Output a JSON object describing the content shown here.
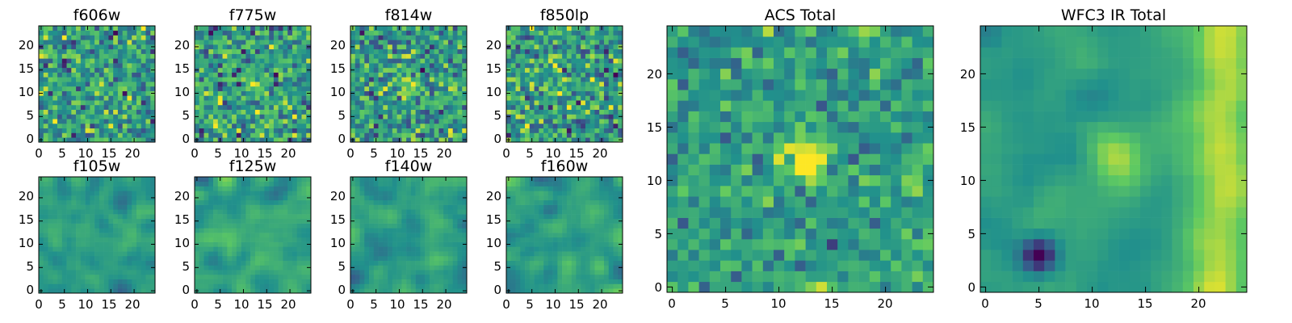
{
  "figure": {
    "colormap": "viridis",
    "colormap_stops": [
      "#440154",
      "#3b528b",
      "#21918c",
      "#5ec962",
      "#fde725"
    ]
  },
  "chart_data": [
    {
      "type": "heatmap",
      "title": "f606w",
      "grid": "25x25",
      "xlim": [
        0,
        24
      ],
      "ylim": [
        0,
        24
      ],
      "xticks": [
        "0",
        "5",
        "10",
        "15",
        "20"
      ],
      "yticks": [
        "0",
        "5",
        "10",
        "15",
        "20"
      ],
      "feature": "faint compact bright source near (12, 12) on a noisy background",
      "seed": 11,
      "noise": 0.5
    },
    {
      "type": "heatmap",
      "title": "f775w",
      "grid": "25x25",
      "xlim": [
        0,
        24
      ],
      "ylim": [
        0,
        24
      ],
      "xticks": [
        "0",
        "5",
        "10",
        "15",
        "20"
      ],
      "yticks": [
        "0",
        "5",
        "10",
        "15",
        "20"
      ],
      "feature": "faint compact bright source near (12, 12) on a noisy background",
      "seed": 23,
      "noise": 0.5
    },
    {
      "type": "heatmap",
      "title": "f814w",
      "grid": "25x25",
      "xlim": [
        0,
        24
      ],
      "ylim": [
        0,
        24
      ],
      "xticks": [
        "0",
        "5",
        "10",
        "15",
        "20"
      ],
      "yticks": [
        "0",
        "5",
        "10",
        "15",
        "20"
      ],
      "feature": "faint compact bright source near (12, 12) on a noisy background",
      "seed": 37,
      "noise": 0.5
    },
    {
      "type": "heatmap",
      "title": "f850lp",
      "grid": "25x25",
      "xlim": [
        0,
        24
      ],
      "ylim": [
        0,
        24
      ],
      "xticks": [
        "0",
        "5",
        "10",
        "15",
        "20"
      ],
      "yticks": [
        "0",
        "5",
        "10",
        "15",
        "20"
      ],
      "feature": "noisy background, source barely visible",
      "seed": 41,
      "noise": 0.55
    },
    {
      "type": "heatmap",
      "title": "f105w",
      "grid": "25x25",
      "xlim": [
        0,
        24
      ],
      "ylim": [
        0,
        24
      ],
      "xticks": [
        "0",
        "5",
        "10",
        "15",
        "20"
      ],
      "yticks": [
        "0",
        "5",
        "10",
        "15",
        "20"
      ],
      "feature": "smoothed noise, diffuse bright regions",
      "seed": 53,
      "noise": 0.45
    },
    {
      "type": "heatmap",
      "title": "f125w",
      "grid": "25x25",
      "xlim": [
        0,
        24
      ],
      "ylim": [
        0,
        24
      ],
      "xticks": [
        "0",
        "5",
        "10",
        "15",
        "20"
      ],
      "yticks": [
        "0",
        "5",
        "10",
        "15",
        "20"
      ],
      "feature": "smoothed noise, diffuse bright regions",
      "seed": 67,
      "noise": 0.45
    },
    {
      "type": "heatmap",
      "title": "f140w",
      "grid": "25x25",
      "xlim": [
        0,
        24
      ],
      "ylim": [
        0,
        24
      ],
      "xticks": [
        "0",
        "5",
        "10",
        "15",
        "20"
      ],
      "yticks": [
        "0",
        "5",
        "10",
        "15",
        "20"
      ],
      "feature": "smoothed noise, diffuse bright regions",
      "seed": 79,
      "noise": 0.45
    },
    {
      "type": "heatmap",
      "title": "f160w",
      "grid": "25x25",
      "xlim": [
        0,
        24
      ],
      "ylim": [
        0,
        24
      ],
      "xticks": [
        "0",
        "5",
        "10",
        "15",
        "20"
      ],
      "yticks": [
        "0",
        "5",
        "10",
        "15",
        "20"
      ],
      "feature": "smoothed noise, diffuse bright regions",
      "seed": 83,
      "noise": 0.45
    },
    {
      "type": "heatmap",
      "title": "ACS Total",
      "grid": "25x25",
      "xlim": [
        0,
        24
      ],
      "ylim": [
        0,
        24
      ],
      "xticks": [
        "0",
        "5",
        "10",
        "15",
        "20"
      ],
      "yticks": [
        "0",
        "5",
        "10",
        "15",
        "20"
      ],
      "feature": "bright compact source centered near (12.5, 12), cells up to top of colormap",
      "seed": 97,
      "noise": 0.35
    },
    {
      "type": "heatmap",
      "title": "WFC3 IR Total",
      "grid": "25x25",
      "xlim": [
        0,
        24
      ],
      "ylim": [
        0,
        24
      ],
      "xticks": [
        "0",
        "5",
        "10",
        "15",
        "20"
      ],
      "yticks": [
        "0",
        "5",
        "10",
        "15",
        "20"
      ],
      "feature": "extended bright emission on right side and near (12, 12), dark clump near (5, 3)",
      "seed": 101,
      "noise": 0.3
    }
  ]
}
